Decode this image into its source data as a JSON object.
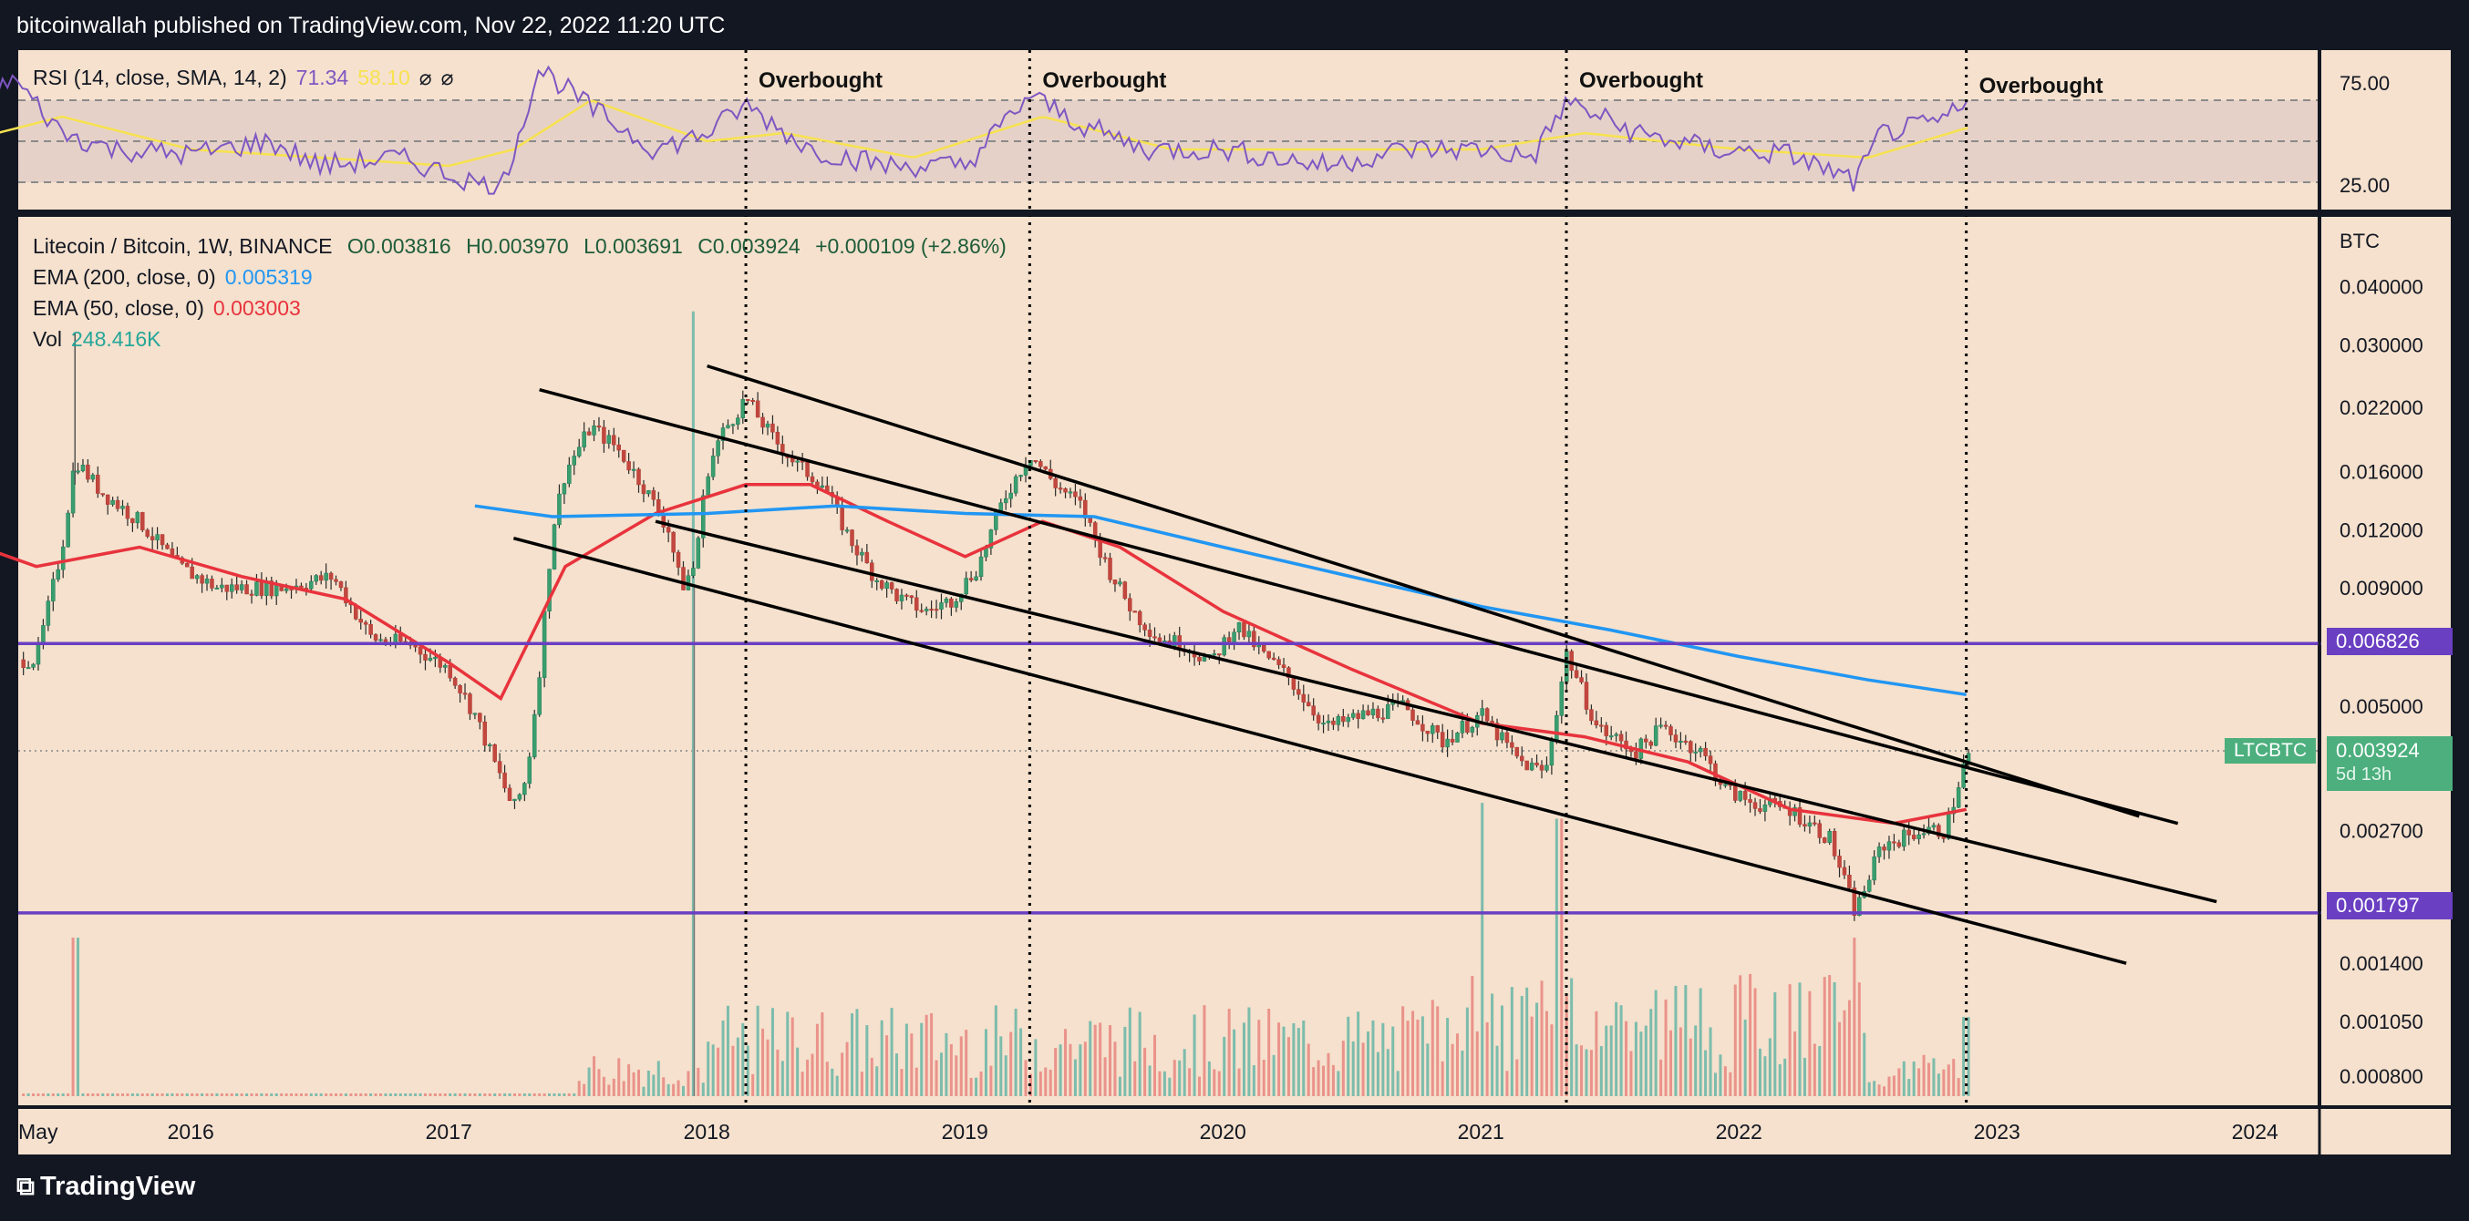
{
  "header": {
    "publisher_line": "bitcoinwallah published on TradingView.com, Nov 22, 2022 11:20 UTC"
  },
  "footer": {
    "logo_text": "TradingView"
  },
  "rsi_legend": {
    "name": "RSI (14, close, SMA, 14, 2)",
    "rsi_value": "71.34",
    "sma_value": "58.10",
    "icons": [
      "eye-off-icon",
      "eye-off-icon"
    ]
  },
  "main_legend": {
    "symbol": "Litecoin / Bitcoin, 1W, BINANCE",
    "open": "O0.003816",
    "high": "H0.003970",
    "low": "L0.003691",
    "close": "C0.003924",
    "change": "+0.000109 (+2.86%)",
    "ema200_label": "EMA (200, close, 0)",
    "ema200_value": "0.005319",
    "ema50_label": "EMA (50, close, 0)",
    "ema50_value": "0.003003",
    "vol_label": "Vol",
    "vol_value": "248.416K"
  },
  "axis": {
    "currency": "BTC",
    "rsi_ticks": [
      "75.00",
      "25.00"
    ],
    "price_ticks": [
      "0.040000",
      "0.030000",
      "0.022000",
      "0.016000",
      "0.012000",
      "0.009000",
      "0.005000",
      "0.002700",
      "0.001400",
      "0.001050",
      "0.000800"
    ],
    "x_ticks": [
      "May",
      "2016",
      "2017",
      "2018",
      "2019",
      "2020",
      "2021",
      "2022",
      "2023",
      "2024"
    ]
  },
  "price_tags": {
    "upper_support": "0.006826",
    "last_symbol": "LTCBTC",
    "last_price": "0.003924",
    "countdown": "5d 13h",
    "lower_support": "0.001797"
  },
  "annotations": [
    "Overbought",
    "Overbought",
    "Overbought",
    "Overbought"
  ],
  "colors": {
    "background": "#f5e1cd",
    "frame": "#131722",
    "ema200": "#2196f3",
    "ema50": "#e8333d",
    "rsi": "#7e57c2",
    "rsi_sma": "#f7e24f",
    "support": "#6a3fc2",
    "up": "#26a69a",
    "down": "#ef5350"
  },
  "chart_data": {
    "type": "candlestick",
    "title": "Litecoin / Bitcoin, 1W, BINANCE",
    "y_scale": "log",
    "ylim": [
      0.00065,
      0.05
    ],
    "x_range": [
      "2015-05",
      "2024-05"
    ],
    "horizontal_levels": [
      0.006826,
      0.001797
    ],
    "overbought_dates": [
      2018.15,
      2019.25,
      2021.33,
      2022.88
    ],
    "channel_lines": [
      {
        "from": [
          2017.35,
          0.024
        ],
        "to": [
          2023.7,
          0.0028
        ]
      },
      {
        "from": [
          2018.0,
          0.027
        ],
        "to": [
          2023.55,
          0.0029
        ]
      },
      {
        "from": [
          2017.8,
          0.0125
        ],
        "to": [
          2023.85,
          0.0019
        ]
      },
      {
        "from": [
          2017.25,
          0.0115
        ],
        "to": [
          2023.5,
          0.0014
        ]
      }
    ],
    "price_path": [
      [
        2015.4,
        0.0063
      ],
      [
        2015.5,
        0.011
      ],
      [
        2015.55,
        0.017
      ],
      [
        2015.65,
        0.0145
      ],
      [
        2015.8,
        0.0125
      ],
      [
        2015.95,
        0.01
      ],
      [
        2016.1,
        0.009
      ],
      [
        2016.35,
        0.009
      ],
      [
        2016.55,
        0.0095
      ],
      [
        2016.7,
        0.007
      ],
      [
        2016.85,
        0.0068
      ],
      [
        2017.0,
        0.006
      ],
      [
        2017.1,
        0.0048
      ],
      [
        2017.2,
        0.0035
      ],
      [
        2017.25,
        0.003
      ],
      [
        2017.3,
        0.0035
      ],
      [
        2017.35,
        0.006
      ],
      [
        2017.4,
        0.012
      ],
      [
        2017.45,
        0.016
      ],
      [
        2017.55,
        0.02
      ],
      [
        2017.65,
        0.018
      ],
      [
        2017.75,
        0.015
      ],
      [
        2017.85,
        0.012
      ],
      [
        2017.9,
        0.009
      ],
      [
        2017.95,
        0.01
      ],
      [
        2018.0,
        0.016
      ],
      [
        2018.05,
        0.019
      ],
      [
        2018.15,
        0.023
      ],
      [
        2018.25,
        0.019
      ],
      [
        2018.35,
        0.0165
      ],
      [
        2018.45,
        0.015
      ],
      [
        2018.55,
        0.0115
      ],
      [
        2018.65,
        0.0095
      ],
      [
        2018.75,
        0.0085
      ],
      [
        2018.85,
        0.008
      ],
      [
        2018.95,
        0.0085
      ],
      [
        2019.05,
        0.01
      ],
      [
        2019.15,
        0.014
      ],
      [
        2019.25,
        0.0175
      ],
      [
        2019.35,
        0.015
      ],
      [
        2019.45,
        0.0135
      ],
      [
        2019.55,
        0.01
      ],
      [
        2019.65,
        0.008
      ],
      [
        2019.75,
        0.007
      ],
      [
        2019.85,
        0.0068
      ],
      [
        2019.95,
        0.0062
      ],
      [
        2020.05,
        0.0075
      ],
      [
        2020.15,
        0.0065
      ],
      [
        2020.25,
        0.0058
      ],
      [
        2020.4,
        0.0045
      ],
      [
        2020.55,
        0.0048
      ],
      [
        2020.7,
        0.005
      ],
      [
        2020.85,
        0.0042
      ],
      [
        2021.0,
        0.0048
      ],
      [
        2021.15,
        0.0038
      ],
      [
        2021.25,
        0.0036
      ],
      [
        2021.33,
        0.0065
      ],
      [
        2021.45,
        0.0045
      ],
      [
        2021.6,
        0.004
      ],
      [
        2021.7,
        0.0045
      ],
      [
        2021.85,
        0.004
      ],
      [
        2021.95,
        0.0033
      ],
      [
        2022.05,
        0.0031
      ],
      [
        2022.2,
        0.003
      ],
      [
        2022.35,
        0.0026
      ],
      [
        2022.45,
        0.0018
      ],
      [
        2022.55,
        0.0025
      ],
      [
        2022.7,
        0.0027
      ],
      [
        2022.8,
        0.0027
      ],
      [
        2022.88,
        0.0039
      ]
    ],
    "ema50_path": [
      [
        2015.0,
        0.012
      ],
      [
        2015.4,
        0.01
      ],
      [
        2015.8,
        0.011
      ],
      [
        2016.2,
        0.0095
      ],
      [
        2016.6,
        0.0085
      ],
      [
        2017.0,
        0.0062
      ],
      [
        2017.2,
        0.0052
      ],
      [
        2017.45,
        0.01
      ],
      [
        2017.8,
        0.013
      ],
      [
        2018.15,
        0.015
      ],
      [
        2018.4,
        0.015
      ],
      [
        2018.7,
        0.0125
      ],
      [
        2019.0,
        0.0105
      ],
      [
        2019.3,
        0.0125
      ],
      [
        2019.6,
        0.011
      ],
      [
        2020.0,
        0.008
      ],
      [
        2020.5,
        0.006
      ],
      [
        2021.0,
        0.0046
      ],
      [
        2021.4,
        0.0043
      ],
      [
        2021.8,
        0.0038
      ],
      [
        2022.2,
        0.003
      ],
      [
        2022.6,
        0.0028
      ],
      [
        2022.88,
        0.003
      ]
    ],
    "ema200_path": [
      [
        2017.1,
        0.0135
      ],
      [
        2017.4,
        0.0128
      ],
      [
        2018.0,
        0.013
      ],
      [
        2018.5,
        0.0135
      ],
      [
        2019.0,
        0.013
      ],
      [
        2019.5,
        0.0128
      ],
      [
        2020.0,
        0.011
      ],
      [
        2020.5,
        0.0095
      ],
      [
        2021.0,
        0.0082
      ],
      [
        2021.5,
        0.0073
      ],
      [
        2022.0,
        0.0064
      ],
      [
        2022.5,
        0.0057
      ],
      [
        2022.88,
        0.0053
      ]
    ],
    "rsi_path": [
      [
        2015.0,
        45
      ],
      [
        2015.15,
        55
      ],
      [
        2015.3,
        90
      ],
      [
        2015.5,
        55
      ],
      [
        2015.7,
        45
      ],
      [
        2016.0,
        42
      ],
      [
        2016.3,
        50
      ],
      [
        2016.5,
        35
      ],
      [
        2016.8,
        40
      ],
      [
        2017.0,
        30
      ],
      [
        2017.1,
        25
      ],
      [
        2017.2,
        20
      ],
      [
        2017.35,
        95
      ],
      [
        2017.55,
        70
      ],
      [
        2017.8,
        45
      ],
      [
        2018.0,
        55
      ],
      [
        2018.15,
        72
      ],
      [
        2018.4,
        45
      ],
      [
        2018.7,
        35
      ],
      [
        2019.0,
        35
      ],
      [
        2019.25,
        78
      ],
      [
        2019.45,
        60
      ],
      [
        2019.7,
        45
      ],
      [
        2020.0,
        45
      ],
      [
        2020.4,
        35
      ],
      [
        2020.7,
        45
      ],
      [
        2021.0,
        45
      ],
      [
        2021.2,
        40
      ],
      [
        2021.33,
        74
      ],
      [
        2021.6,
        55
      ],
      [
        2021.9,
        45
      ],
      [
        2022.2,
        42
      ],
      [
        2022.45,
        25
      ],
      [
        2022.55,
        55
      ],
      [
        2022.75,
        60
      ],
      [
        2022.88,
        71
      ]
    ],
    "rsi_sma_path": [
      [
        2015.0,
        45
      ],
      [
        2015.5,
        65
      ],
      [
        2016.0,
        45
      ],
      [
        2016.5,
        40
      ],
      [
        2017.0,
        35
      ],
      [
        2017.25,
        45
      ],
      [
        2017.55,
        75
      ],
      [
        2018.0,
        50
      ],
      [
        2018.3,
        55
      ],
      [
        2018.8,
        40
      ],
      [
        2019.3,
        65
      ],
      [
        2019.8,
        45
      ],
      [
        2020.4,
        45
      ],
      [
        2021.0,
        45
      ],
      [
        2021.4,
        55
      ],
      [
        2022.0,
        45
      ],
      [
        2022.5,
        40
      ],
      [
        2022.88,
        58
      ]
    ],
    "volume_spikes": [
      [
        2015.55,
        0.2
      ],
      [
        2017.95,
        0.99
      ],
      [
        2021.0,
        0.37
      ],
      [
        2021.3,
        0.35
      ],
      [
        2022.45,
        0.2
      ],
      [
        2022.88,
        0.1
      ]
    ]
  }
}
